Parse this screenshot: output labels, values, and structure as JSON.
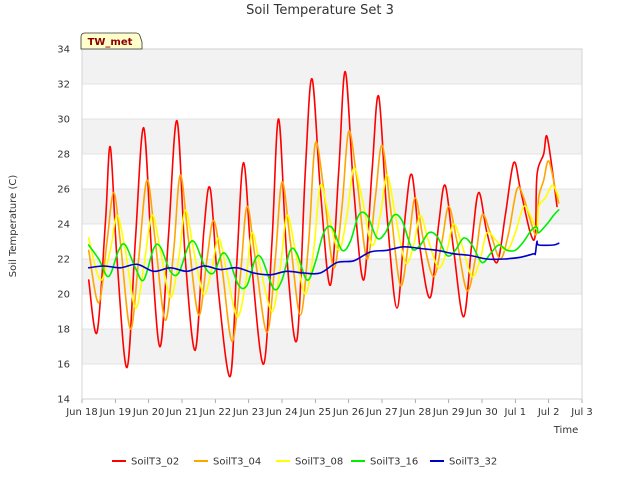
{
  "chart_data": {
    "type": "line",
    "title": "Soil Temperature Set 3",
    "xlabel": "Time",
    "ylabel": "Soil Temperature (C)",
    "ylim": [
      14,
      34
    ],
    "xlim": [
      0,
      15
    ],
    "y_ticks": [
      14,
      16,
      18,
      20,
      22,
      24,
      26,
      28,
      30,
      32,
      34
    ],
    "x_ticks": [
      {
        "x": 0,
        "label": "Jun 18"
      },
      {
        "x": 1,
        "label": "Jun 19"
      },
      {
        "x": 2,
        "label": "Jun 20"
      },
      {
        "x": 3,
        "label": "Jun 21"
      },
      {
        "x": 4,
        "label": "Jun 22"
      },
      {
        "x": 5,
        "label": "Jun 23"
      },
      {
        "x": 6,
        "label": "Jun 24"
      },
      {
        "x": 7,
        "label": "Jun 25"
      },
      {
        "x": 8,
        "label": "Jun 26"
      },
      {
        "x": 9,
        "label": "Jun 27"
      },
      {
        "x": 10,
        "label": "Jun 28"
      },
      {
        "x": 11,
        "label": "Jun 29"
      },
      {
        "x": 12,
        "label": "Jun 30"
      },
      {
        "x": 13,
        "label": "Jul 1"
      },
      {
        "x": 14,
        "label": "Jul 2"
      },
      {
        "x": 15,
        "label": "Jul 3"
      }
    ],
    "grid": true,
    "legend_position": "bottom",
    "badge": "TW_met",
    "series": [
      {
        "name": "SoilT3_02",
        "color": "#ff0000",
        "points": [
          [
            0.05,
            20.8
          ],
          [
            0.3,
            17.8
          ],
          [
            0.55,
            24
          ],
          [
            0.7,
            28.4
          ],
          [
            0.9,
            22
          ],
          [
            1.2,
            15.8
          ],
          [
            1.45,
            23
          ],
          [
            1.7,
            29.5
          ],
          [
            1.95,
            22
          ],
          [
            2.2,
            17
          ],
          [
            2.45,
            23.5
          ],
          [
            2.7,
            29.9
          ],
          [
            2.95,
            22
          ],
          [
            3.25,
            16.8
          ],
          [
            3.5,
            23.5
          ],
          [
            3.7,
            26
          ],
          [
            3.95,
            20
          ],
          [
            4.3,
            15.3
          ],
          [
            4.5,
            22
          ],
          [
            4.7,
            27.5
          ],
          [
            4.95,
            21.5
          ],
          [
            5.3,
            16
          ],
          [
            5.55,
            23
          ],
          [
            5.75,
            30
          ],
          [
            6.0,
            22
          ],
          [
            6.3,
            17.4
          ],
          [
            6.55,
            27
          ],
          [
            6.75,
            32.3
          ],
          [
            7.0,
            26
          ],
          [
            7.3,
            20.5
          ],
          [
            7.55,
            27
          ],
          [
            7.75,
            32.7
          ],
          [
            8.0,
            26
          ],
          [
            8.3,
            20.8
          ],
          [
            8.55,
            27
          ],
          [
            8.75,
            31.3
          ],
          [
            9.0,
            24.5
          ],
          [
            9.3,
            19.2
          ],
          [
            9.55,
            24.5
          ],
          [
            9.75,
            26.8
          ],
          [
            10.0,
            22.5
          ],
          [
            10.3,
            19.8
          ],
          [
            10.55,
            24
          ],
          [
            10.75,
            26.2
          ],
          [
            11.0,
            22.5
          ],
          [
            11.3,
            18.7
          ],
          [
            11.55,
            23
          ],
          [
            11.75,
            25.8
          ],
          [
            12.0,
            23.5
          ],
          [
            12.3,
            21.8
          ],
          [
            12.55,
            24.5
          ],
          [
            12.8,
            27.5
          ],
          [
            13.0,
            26
          ],
          [
            13.3,
            23.5
          ],
          [
            13.45,
            23.4
          ],
          [
            13.5,
            26.8
          ],
          [
            13.7,
            28
          ],
          [
            13.8,
            29
          ],
          [
            14.0,
            26.5
          ],
          [
            14.1,
            25
          ]
        ]
      },
      {
        "name": "SoilT3_04",
        "color": "#ffa500",
        "points": [
          [
            0.05,
            22.5
          ],
          [
            0.35,
            19.5
          ],
          [
            0.6,
            23
          ],
          [
            0.8,
            25.8
          ],
          [
            1.0,
            23
          ],
          [
            1.3,
            18
          ],
          [
            1.55,
            22
          ],
          [
            1.8,
            26.5
          ],
          [
            2.05,
            23
          ],
          [
            2.35,
            18.5
          ],
          [
            2.6,
            22.5
          ],
          [
            2.8,
            26.8
          ],
          [
            3.05,
            23
          ],
          [
            3.35,
            18.8
          ],
          [
            3.6,
            22
          ],
          [
            3.8,
            24.2
          ],
          [
            4.05,
            21.5
          ],
          [
            4.35,
            17.3
          ],
          [
            4.6,
            21
          ],
          [
            4.8,
            25
          ],
          [
            5.05,
            22
          ],
          [
            5.4,
            17.8
          ],
          [
            5.65,
            22
          ],
          [
            5.85,
            26.4
          ],
          [
            6.1,
            23
          ],
          [
            6.4,
            18.8
          ],
          [
            6.65,
            23
          ],
          [
            6.85,
            28.6
          ],
          [
            7.1,
            26
          ],
          [
            7.4,
            21.5
          ],
          [
            7.65,
            25
          ],
          [
            7.85,
            29.3
          ],
          [
            8.1,
            26.5
          ],
          [
            8.4,
            22
          ],
          [
            8.65,
            25.5
          ],
          [
            8.85,
            28.5
          ],
          [
            9.1,
            25
          ],
          [
            9.4,
            20.5
          ],
          [
            9.65,
            23
          ],
          [
            9.85,
            25.5
          ],
          [
            10.1,
            23
          ],
          [
            10.4,
            21
          ],
          [
            10.65,
            23
          ],
          [
            10.85,
            25
          ],
          [
            11.1,
            23
          ],
          [
            11.4,
            20.2
          ],
          [
            11.65,
            22
          ],
          [
            11.85,
            24.5
          ],
          [
            12.1,
            23.5
          ],
          [
            12.4,
            22
          ],
          [
            12.65,
            23.5
          ],
          [
            12.9,
            26
          ],
          [
            13.1,
            25.5
          ],
          [
            13.4,
            23.6
          ],
          [
            13.5,
            23.6
          ],
          [
            13.55,
            25.5
          ],
          [
            13.7,
            26.5
          ],
          [
            13.85,
            27.6
          ],
          [
            14.05,
            26
          ],
          [
            14.15,
            25.2
          ]
        ]
      },
      {
        "name": "SoilT3_08",
        "color": "#ffff00",
        "points": [
          [
            0.05,
            23.2
          ],
          [
            0.4,
            20.8
          ],
          [
            0.7,
            22.5
          ],
          [
            0.9,
            24.5
          ],
          [
            1.15,
            22.5
          ],
          [
            1.45,
            19.2
          ],
          [
            1.7,
            21.5
          ],
          [
            1.95,
            24.5
          ],
          [
            2.2,
            22.5
          ],
          [
            2.5,
            19.8
          ],
          [
            2.75,
            22
          ],
          [
            2.95,
            24.8
          ],
          [
            3.2,
            22.5
          ],
          [
            3.5,
            20
          ],
          [
            3.75,
            21.5
          ],
          [
            3.95,
            23.2
          ],
          [
            4.2,
            21.2
          ],
          [
            4.5,
            18.7
          ],
          [
            4.75,
            20.5
          ],
          [
            4.95,
            23.5
          ],
          [
            5.2,
            21.5
          ],
          [
            5.55,
            19
          ],
          [
            5.8,
            21.5
          ],
          [
            6.0,
            24.5
          ],
          [
            6.25,
            22.5
          ],
          [
            6.55,
            20
          ],
          [
            6.8,
            22.5
          ],
          [
            7.0,
            26.2
          ],
          [
            7.25,
            24.5
          ],
          [
            7.55,
            22.5
          ],
          [
            7.8,
            24.5
          ],
          [
            8.0,
            27.2
          ],
          [
            8.25,
            25.5
          ],
          [
            8.55,
            22.8
          ],
          [
            8.8,
            24.5
          ],
          [
            9.0,
            26.8
          ],
          [
            9.25,
            24.5
          ],
          [
            9.55,
            21.8
          ],
          [
            9.8,
            22.8
          ],
          [
            10.0,
            24.5
          ],
          [
            10.25,
            23
          ],
          [
            10.55,
            21.5
          ],
          [
            10.8,
            22.5
          ],
          [
            11.0,
            24
          ],
          [
            11.25,
            22.8
          ],
          [
            11.55,
            21
          ],
          [
            11.8,
            22
          ],
          [
            12.0,
            23.5
          ],
          [
            12.3,
            23
          ],
          [
            12.6,
            22.5
          ],
          [
            12.85,
            23.5
          ],
          [
            13.1,
            25
          ],
          [
            13.3,
            24.5
          ],
          [
            13.5,
            23.7
          ],
          [
            13.55,
            25
          ],
          [
            13.75,
            25.5
          ],
          [
            13.95,
            26.2
          ],
          [
            14.1,
            25.8
          ],
          [
            14.15,
            25.5
          ]
        ]
      },
      {
        "name": "SoilT3_16",
        "color": "#00ee00",
        "points": [
          [
            0.05,
            22.8
          ],
          [
            0.35,
            22
          ],
          [
            0.65,
            21
          ],
          [
            0.95,
            22.5
          ],
          [
            1.15,
            22.8
          ],
          [
            1.45,
            21.5
          ],
          [
            1.7,
            20.8
          ],
          [
            2.0,
            22.6
          ],
          [
            2.2,
            22.7
          ],
          [
            2.5,
            21.3
          ],
          [
            2.75,
            21.2
          ],
          [
            3.05,
            22.8
          ],
          [
            3.25,
            22.9
          ],
          [
            3.55,
            21.5
          ],
          [
            3.8,
            21.2
          ],
          [
            4.05,
            22.3
          ],
          [
            4.25,
            22
          ],
          [
            4.55,
            20.5
          ],
          [
            4.8,
            20.5
          ],
          [
            5.05,
            22
          ],
          [
            5.25,
            22
          ],
          [
            5.6,
            20.3
          ],
          [
            5.85,
            20.8
          ],
          [
            6.1,
            22.5
          ],
          [
            6.3,
            22.3
          ],
          [
            6.6,
            20.8
          ],
          [
            6.85,
            21.8
          ],
          [
            7.1,
            23.5
          ],
          [
            7.35,
            23.8
          ],
          [
            7.65,
            22.5
          ],
          [
            7.9,
            23
          ],
          [
            8.15,
            24.5
          ],
          [
            8.4,
            24.5
          ],
          [
            8.7,
            23.2
          ],
          [
            8.95,
            23.5
          ],
          [
            9.2,
            24.5
          ],
          [
            9.45,
            24.2
          ],
          [
            9.75,
            22.6
          ],
          [
            10.0,
            22.8
          ],
          [
            10.25,
            23.5
          ],
          [
            10.5,
            23.3
          ],
          [
            10.8,
            22.2
          ],
          [
            11.05,
            22.5
          ],
          [
            11.3,
            23.2
          ],
          [
            11.55,
            22.8
          ],
          [
            11.85,
            21.8
          ],
          [
            12.1,
            22.3
          ],
          [
            12.35,
            22.8
          ],
          [
            12.6,
            22.5
          ],
          [
            12.85,
            22.5
          ],
          [
            13.1,
            23
          ],
          [
            13.35,
            23.7
          ],
          [
            13.5,
            23.8
          ],
          [
            13.55,
            23.5
          ],
          [
            13.8,
            24
          ],
          [
            14.0,
            24.5
          ],
          [
            14.15,
            24.8
          ]
        ]
      },
      {
        "name": "SoilT3_32",
        "color": "#0000cc",
        "points": [
          [
            0.05,
            21.5
          ],
          [
            0.5,
            21.6
          ],
          [
            1.0,
            21.5
          ],
          [
            1.5,
            21.7
          ],
          [
            2.0,
            21.3
          ],
          [
            2.5,
            21.5
          ],
          [
            3.0,
            21.3
          ],
          [
            3.5,
            21.6
          ],
          [
            4.0,
            21.4
          ],
          [
            4.5,
            21.5
          ],
          [
            5.0,
            21.2
          ],
          [
            5.5,
            21.1
          ],
          [
            6.0,
            21.3
          ],
          [
            6.5,
            21.2
          ],
          [
            7.0,
            21.2
          ],
          [
            7.5,
            21.8
          ],
          [
            8.0,
            21.9
          ],
          [
            8.5,
            22.4
          ],
          [
            9.0,
            22.5
          ],
          [
            9.5,
            22.7
          ],
          [
            10.0,
            22.6
          ],
          [
            10.5,
            22.5
          ],
          [
            11.0,
            22.3
          ],
          [
            11.5,
            22.2
          ],
          [
            12.0,
            22
          ],
          [
            12.5,
            22
          ],
          [
            13.0,
            22.1
          ],
          [
            13.4,
            22.3
          ],
          [
            13.45,
            22.3
          ],
          [
            13.5,
            23
          ],
          [
            13.55,
            22.8
          ],
          [
            14.0,
            22.8
          ],
          [
            14.15,
            22.9
          ]
        ]
      }
    ]
  }
}
